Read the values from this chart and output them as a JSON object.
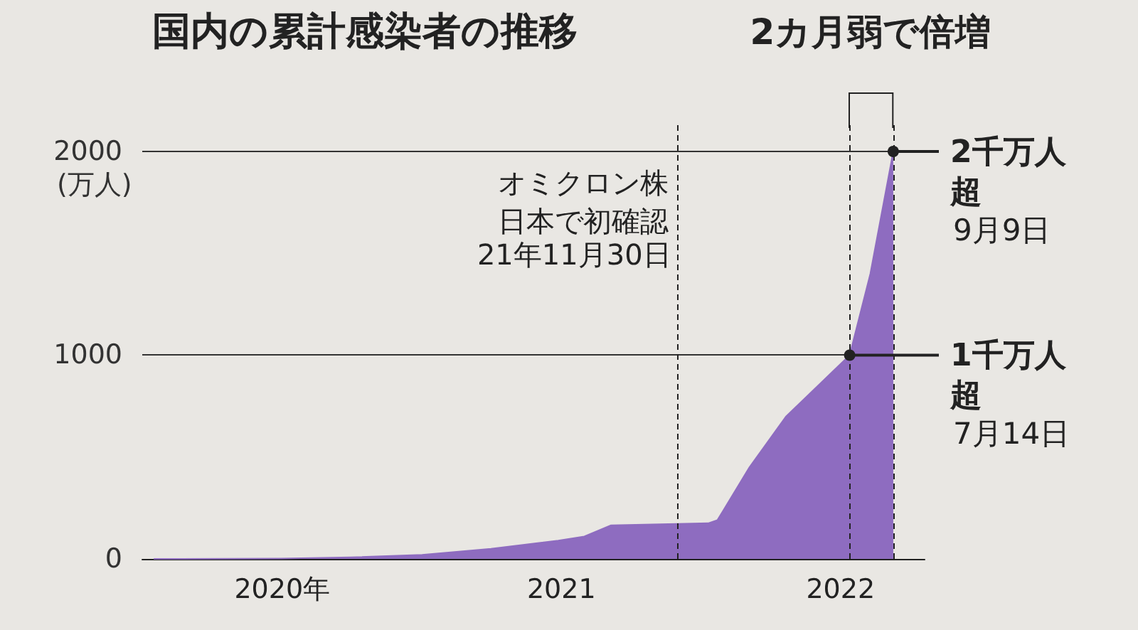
{
  "chart_data": {
    "type": "area",
    "title": "国内の累計感染者の推移",
    "ylabel": "(万人)",
    "x": [
      "2020-01-16",
      "2020-04-30",
      "2020-07-01",
      "2020-09-30",
      "2021-01-01",
      "2021-04-01",
      "2021-06-28",
      "2021-08-01",
      "2021-09-05",
      "2021-11-30",
      "2022-01-10",
      "2022-01-22",
      "2022-03-05",
      "2022-04-22",
      "2022-05-28",
      "2022-07-14",
      "2022-08-10",
      "2022-09-09"
    ],
    "series": [
      {
        "color": "#8e6cc0",
        "values": [
          0,
          1,
          2,
          8,
          20,
          50,
          90,
          110,
          165,
          172,
          175,
          190,
          450,
          700,
          830,
          1000,
          1400,
          2000
        ]
      }
    ],
    "xlim": [
      "2020-01-01",
      "2022-10-20"
    ],
    "xticks": [
      {
        "value": "2020-07-02",
        "label": "2020年"
      },
      {
        "value": "2021-07-02",
        "label": "2021"
      },
      {
        "value": "2022-07-02",
        "label": "2022"
      }
    ],
    "ylim": [
      0,
      2150
    ],
    "yticks": [
      0,
      1000,
      2000
    ],
    "grid": "y",
    "marker": "none",
    "ref_lines": [
      {
        "axis": "x",
        "value": "2021-11-30",
        "label": "オミクロン株日本で初確認",
        "line_style": "dashed"
      },
      {
        "axis": "x",
        "value": "2022-07-14",
        "label": null,
        "line_style": "dashed"
      },
      {
        "axis": "x",
        "value": "2022-09-09",
        "label": null,
        "line_style": "dashed"
      }
    ],
    "annotations": [
      "2カ月弱で倍増",
      {
        "text": "21年11月30日",
        "x": "2021-11-30"
      },
      {
        "text": "1千万人超",
        "x": "2022-07-14",
        "y": 1000
      },
      "7月14日",
      {
        "text": "2千万人超",
        "x": "2022-09-09",
        "y": 2000
      },
      "9月9日"
    ]
  }
}
